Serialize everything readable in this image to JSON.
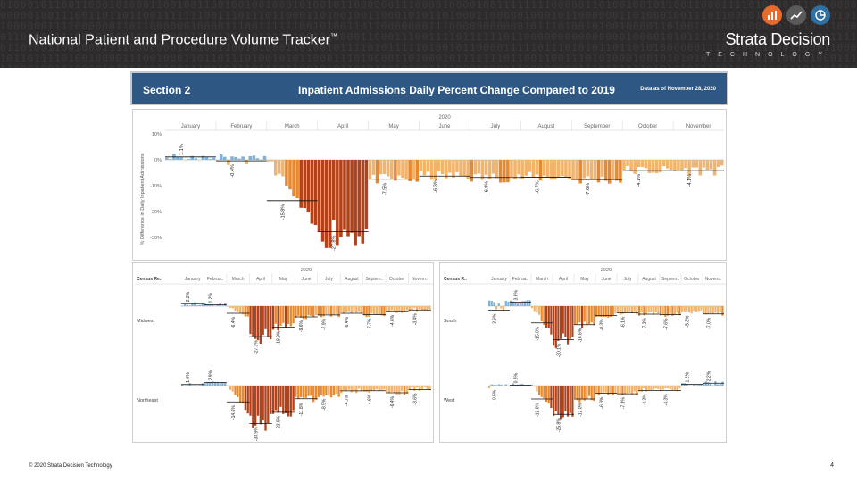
{
  "header": {
    "title": "National Patient and Procedure Volume Tracker",
    "trademark": "™",
    "brand_name": "Strata Decision",
    "brand_sub": "TECHNOLOGY",
    "brand_icon_colors": [
      "#e86a2c",
      "#5a5a5a",
      "#2e6fa4"
    ],
    "brand_icons": [
      "bar-chart-icon",
      "line-chart-icon",
      "pie-chart-icon"
    ]
  },
  "section": {
    "label": "Section 2",
    "title": "Inpatient Admissions Daily Percent Change Compared to 2019",
    "date_note": "Data as of November 28, 2020"
  },
  "footer": {
    "copyright": "© 2020 Strata Decision Technology",
    "page_number": "4"
  },
  "colors": {
    "header_blue": "#2e5883",
    "positive": "#7fb2d6",
    "negative_light": "#f2b36b",
    "negative_mid": "#e8892f",
    "negative_dark": "#b2421a",
    "reference_line": "#111111"
  },
  "chart_data": [
    {
      "type": "bar",
      "id": "national",
      "year": "2020",
      "months": [
        "January",
        "February",
        "March",
        "April",
        "May",
        "June",
        "July",
        "August",
        "September",
        "October",
        "November"
      ],
      "ylabel": "% Difference in Daily Inpatient Admissions",
      "yticks": [
        "10%",
        "0%",
        "-10%",
        "-20%",
        "-30%"
      ],
      "ylim": [
        -35,
        12
      ],
      "annotations": [
        "1.1%",
        "-0.4%",
        "-15.8%",
        "-27.8%",
        "-7.5%",
        "-6.3%",
        "-6.8%",
        "-6.7%",
        "-7.6%",
        "-4.1%",
        "-4.1%"
      ],
      "monthly_avg": [
        1.1,
        -0.4,
        -15.8,
        -27.8,
        -7.5,
        -6.3,
        -6.8,
        -6.7,
        -7.6,
        -4.1,
        -4.1
      ]
    },
    {
      "type": "bar",
      "id": "regional-left",
      "year": "2020",
      "row_header": "Census Re..",
      "months": [
        "January",
        "Februa..",
        "March",
        "April",
        "May",
        "June",
        "July",
        "August",
        "Septem..",
        "October",
        "Novem.."
      ],
      "regions": [
        {
          "name": "Midwest",
          "annotations": [
            "2.2%",
            "1.2%",
            "-6.4%",
            "-27.3%",
            "-18.9%",
            "-9.6%",
            "-7.9%",
            "-6.4%",
            "-7.7%",
            "-4.6%",
            "-3.4%"
          ],
          "monthly_avg": [
            2.2,
            1.2,
            -6.4,
            -27.3,
            -18.9,
            -9.6,
            -7.9,
            -6.4,
            -7.7,
            -4.6,
            -3.4
          ]
        },
        {
          "name": "Northeast",
          "annotations": [
            "1.0%",
            "2.9%",
            "-14.6%",
            "-33.9%",
            "-23.9%",
            "-11.8%",
            "-8.5%",
            "-4.7%",
            "-4.6%",
            "-6.4%",
            "-3.6%"
          ],
          "monthly_avg": [
            1.0,
            2.9,
            -14.6,
            -33.9,
            -23.9,
            -11.8,
            -8.5,
            -4.7,
            -4.6,
            -6.4,
            -3.6
          ]
        }
      ]
    },
    {
      "type": "bar",
      "id": "regional-right",
      "year": "2020",
      "row_header": "Census R..",
      "months": [
        "January",
        "Februa..",
        "March",
        "April",
        "May",
        "June",
        "July",
        "August",
        "Septem..",
        "October",
        "Novem.."
      ],
      "regions": [
        {
          "name": "South",
          "annotations": [
            "-3.6%",
            "3.6%",
            "-15.0%",
            "-30.1%",
            "-16.6%",
            "-8.3%",
            "-6.1%",
            "-7.2%",
            "-7.6%",
            "-5.3%",
            "-7.0%"
          ],
          "monthly_avg": [
            -3.6,
            3.6,
            -15.0,
            -30.1,
            -16.6,
            -8.3,
            -6.1,
            -7.2,
            -7.6,
            -5.3,
            -7.0
          ]
        },
        {
          "name": "West",
          "annotations": [
            "-0.5%",
            "0.5%",
            "-12.0%",
            "-25.8%",
            "-12.0%",
            "-6.9%",
            "-7.3%",
            "-4.3%",
            "-4.3%",
            "1.2%",
            "2.2%"
          ],
          "monthly_avg": [
            -0.5,
            0.5,
            -12.0,
            -25.8,
            -12.0,
            -6.9,
            -7.3,
            -4.3,
            -4.3,
            1.2,
            2.2
          ]
        }
      ]
    }
  ]
}
